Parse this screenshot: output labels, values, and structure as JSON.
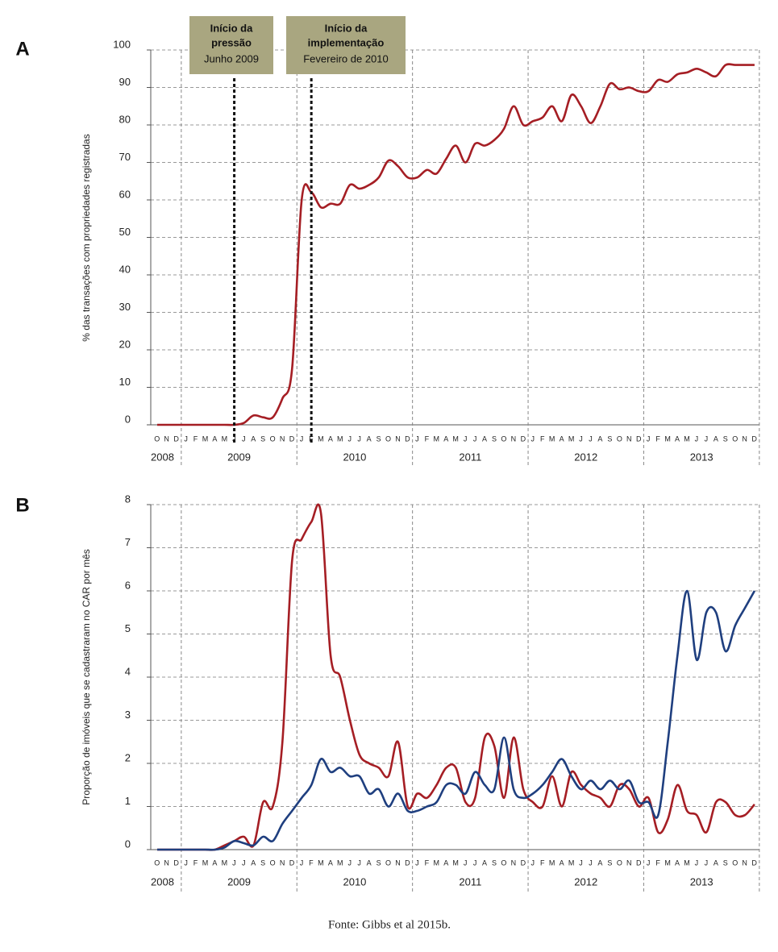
{
  "chart_data": [
    {
      "type": "line",
      "panel": "A",
      "ylabel": "% das transações com propriedades registradas",
      "categories": [
        "O",
        "N",
        "D",
        "J",
        "F",
        "M",
        "A",
        "M",
        "J",
        "J",
        "A",
        "S",
        "O",
        "N",
        "D",
        "J",
        "F",
        "M",
        "A",
        "M",
        "J",
        "J",
        "A",
        "S",
        "O",
        "N",
        "D",
        "J",
        "F",
        "M",
        "A",
        "M",
        "J",
        "J",
        "A",
        "S",
        "O",
        "N",
        "D",
        "J",
        "F",
        "M",
        "A",
        "M",
        "J",
        "J",
        "A",
        "S",
        "O",
        "N",
        "D",
        "J",
        "F",
        "M",
        "A",
        "M",
        "J",
        "J",
        "A",
        "S",
        "O",
        "N",
        "D"
      ],
      "year_labels": [
        "2008",
        "2009",
        "2010",
        "2011",
        "2012",
        "2013"
      ],
      "series": [
        {
          "color": "#a51e24",
          "values": [
            0,
            0,
            0,
            0,
            0,
            0,
            0,
            0,
            0,
            0.5,
            2.5,
            2,
            2,
            7,
            15,
            60,
            62,
            58,
            59,
            59,
            64,
            63,
            64,
            66,
            70.5,
            69,
            66,
            66,
            68,
            67,
            71,
            74.5,
            70,
            75,
            74.5,
            76,
            79,
            85,
            80,
            81,
            82,
            85,
            81,
            88,
            85,
            80.5,
            85,
            91,
            89.5,
            90,
            89,
            89,
            92,
            91.5,
            93.5,
            94,
            95,
            94,
            93,
            96,
            96,
            96,
            96
          ]
        }
      ],
      "ylim": [
        0,
        100
      ],
      "yticks": [
        0,
        10,
        20,
        30,
        40,
        50,
        60,
        70,
        80,
        90,
        100
      ],
      "grid": true,
      "annotations": [
        {
          "title": [
            "Início da",
            "pressão"
          ],
          "subtitle": "Junho 2009"
        },
        {
          "title": [
            "Início da",
            "implementação"
          ],
          "subtitle": "Fevereiro de 2010"
        }
      ]
    },
    {
      "type": "line",
      "panel": "B",
      "ylabel": "Proporção de imóveis que se cadastraram no CAR por mês",
      "categories": [
        "O",
        "N",
        "D",
        "J",
        "F",
        "M",
        "A",
        "M",
        "J",
        "J",
        "A",
        "S",
        "O",
        "N",
        "D",
        "J",
        "F",
        "M",
        "A",
        "M",
        "J",
        "J",
        "A",
        "S",
        "O",
        "N",
        "D",
        "J",
        "F",
        "M",
        "A",
        "M",
        "J",
        "J",
        "A",
        "S",
        "O",
        "N",
        "D",
        "J",
        "F",
        "M",
        "A",
        "M",
        "J",
        "J",
        "A",
        "S",
        "O",
        "N",
        "D",
        "J",
        "F",
        "M",
        "A",
        "M",
        "J",
        "J",
        "A",
        "S",
        "O",
        "N",
        "D"
      ],
      "year_labels": [
        "2008",
        "2009",
        "2010",
        "2011",
        "2012",
        "2013"
      ],
      "series": [
        {
          "color": "#a51e24",
          "values": [
            0,
            0,
            0,
            0,
            0,
            0,
            0,
            0.1,
            0.2,
            0.3,
            0.1,
            1.1,
            1.0,
            2.5,
            6.7,
            7.2,
            7.6,
            7.8,
            4.5,
            4.0,
            3.0,
            2.2,
            2.0,
            1.9,
            1.7,
            2.5,
            1.0,
            1.3,
            1.2,
            1.5,
            1.9,
            1.9,
            1.1,
            1.2,
            2.6,
            2.4,
            1.2,
            2.6,
            1.4,
            1.1,
            1.0,
            1.7,
            1.0,
            1.8,
            1.5,
            1.3,
            1.2,
            1.0,
            1.5,
            1.4,
            1.0,
            1.2,
            0.4,
            0.7,
            1.5,
            0.9,
            0.8,
            0.4,
            1.1,
            1.1,
            0.8,
            0.8,
            1.05
          ]
        },
        {
          "color": "#1f3f7f",
          "values": [
            0,
            0,
            0,
            0,
            0,
            0,
            0,
            0.05,
            0.2,
            0.15,
            0.1,
            0.3,
            0.2,
            0.6,
            0.9,
            1.2,
            1.5,
            2.1,
            1.8,
            1.9,
            1.7,
            1.7,
            1.3,
            1.4,
            1.0,
            1.3,
            0.9,
            0.9,
            1.0,
            1.1,
            1.5,
            1.5,
            1.3,
            1.8,
            1.5,
            1.4,
            2.6,
            1.4,
            1.2,
            1.3,
            1.5,
            1.8,
            2.1,
            1.7,
            1.4,
            1.6,
            1.4,
            1.6,
            1.4,
            1.6,
            1.1,
            1.1,
            0.8,
            2.5,
            4.5,
            6.0,
            4.4,
            5.5,
            5.5,
            4.6,
            5.2,
            5.6,
            6.0
          ]
        }
      ],
      "ylim": [
        0,
        8
      ],
      "yticks": [
        0,
        1,
        2,
        3,
        4,
        5,
        6,
        7,
        8
      ],
      "grid": true
    }
  ],
  "source": "Fonte: Gibbs et al 2015b."
}
